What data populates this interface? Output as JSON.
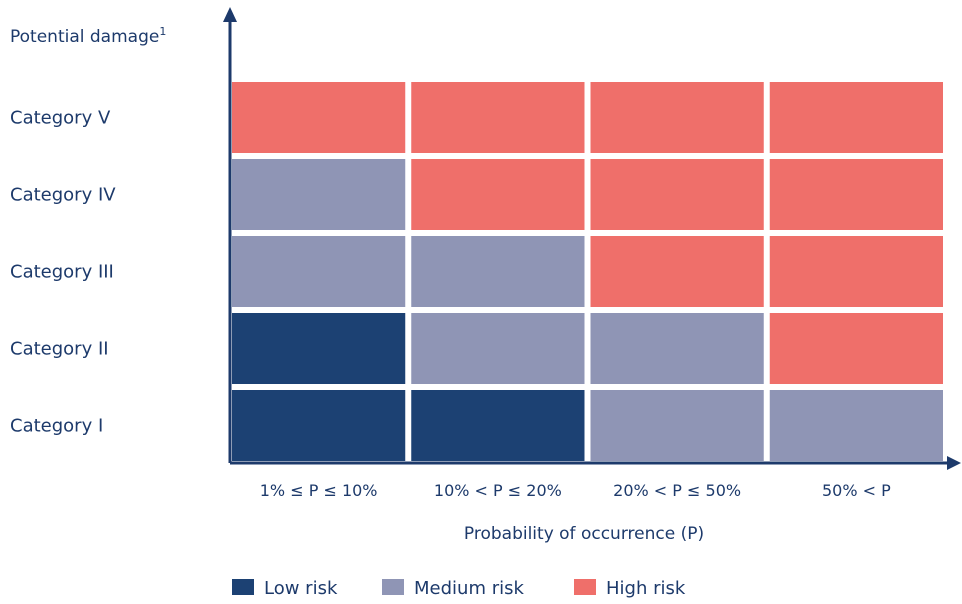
{
  "chart_data": {
    "type": "heatmap",
    "title": "",
    "ylabel": "Potential damage",
    "ylabel_superscript": "1",
    "xlabel": "Probability of occurrence (P)",
    "x_categories": [
      "1% ≤ P ≤ 10%",
      "10% < P ≤ 20%",
      "20% < P ≤ 50%",
      "50% < P"
    ],
    "y_categories": [
      "Category I",
      "Category II",
      "Category III",
      "Category IV",
      "Category V"
    ],
    "cells": [
      [
        "Low risk",
        "Low risk",
        "Medium risk",
        "Medium risk"
      ],
      [
        "Low risk",
        "Medium risk",
        "Medium risk",
        "High risk"
      ],
      [
        "Medium risk",
        "Medium risk",
        "High risk",
        "High risk"
      ],
      [
        "Medium risk",
        "High risk",
        "High risk",
        "High risk"
      ],
      [
        "High risk",
        "High risk",
        "High risk",
        "High risk"
      ]
    ],
    "legend": [
      {
        "name": "Low risk",
        "color": "#1c4173"
      },
      {
        "name": "Medium risk",
        "color": "#8f95b5"
      },
      {
        "name": "High risk",
        "color": "#ef6f6a"
      }
    ],
    "legend_position": "bottom",
    "axis_color": "#1d3a6b"
  }
}
